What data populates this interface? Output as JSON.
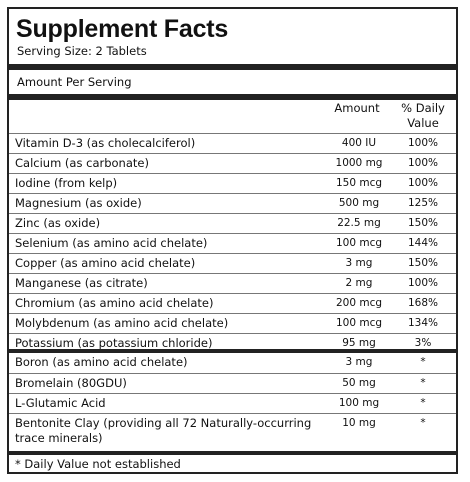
{
  "title": "Supplement Facts",
  "serving_size": "Serving Size: 2 Tablets",
  "amount_per_serving": "Amount Per Serving",
  "columns": {
    "amount": "Amount",
    "dv_line1": "% Daily",
    "dv_line2": "Value"
  },
  "nutrients": [
    {
      "name": "Vitamin D-3 (as cholecalciferol)",
      "amount": "400 IU",
      "dv": "100%"
    },
    {
      "name": "Calcium (as carbonate)",
      "amount": "1000 mg",
      "dv": "100%"
    },
    {
      "name": "Iodine (from kelp)",
      "amount": "150 mcg",
      "dv": "100%"
    },
    {
      "name": "Magnesium (as oxide)",
      "amount": "500 mg",
      "dv": "125%"
    },
    {
      "name": "Zinc (as oxide)",
      "amount": "22.5 mg",
      "dv": "150%"
    },
    {
      "name": "Selenium (as amino acid chelate)",
      "amount": "100 mcg",
      "dv": "144%"
    },
    {
      "name": "Copper (as amino acid chelate)",
      "amount": "3 mg",
      "dv": "150%"
    },
    {
      "name": "Manganese (as citrate)",
      "amount": "2 mg",
      "dv": "100%"
    },
    {
      "name": "Chromium (as amino acid chelate)",
      "amount": "200 mcg",
      "dv": "168%"
    },
    {
      "name": "Molybdenum (as amino acid chelate)",
      "amount": "100 mcg",
      "dv": "134%"
    },
    {
      "name": "Potassium (as potassium chloride)",
      "amount": "95 mg",
      "dv": "3%"
    }
  ],
  "other": [
    {
      "name": "Boron (as amino acid chelate)",
      "amount": "3 mg",
      "dv": "*"
    },
    {
      "name": "Bromelain (80GDU)",
      "amount": "50 mg",
      "dv": "*"
    },
    {
      "name": "L-Glutamic Acid",
      "amount": "100 mg",
      "dv": "*"
    },
    {
      "name": "Bentonite Clay (providing all 72 Naturally-occurring trace minerals)",
      "amount": "10 mg",
      "dv": "*"
    }
  ],
  "footnote": "* Daily Value not established"
}
